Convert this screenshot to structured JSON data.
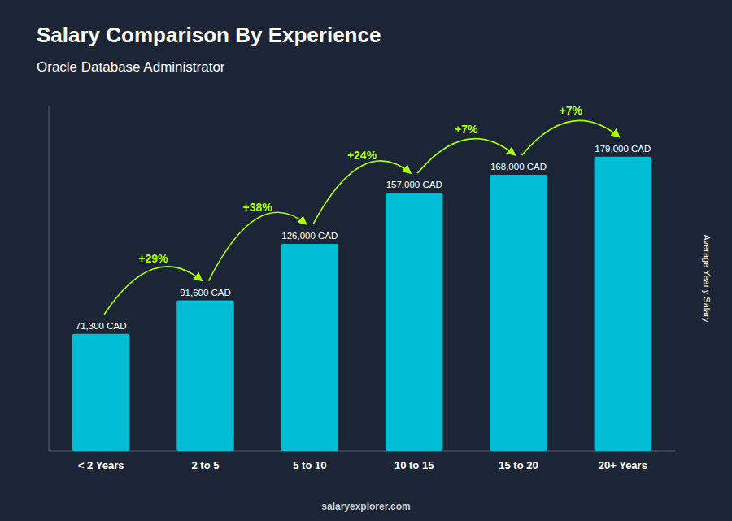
{
  "chart_data": {
    "type": "bar",
    "title": "Salary Comparison By Experience",
    "subtitle": "Oracle Database Administrator",
    "y_label": "Average Yearly Salary",
    "footer": "salaryexplorer.com",
    "categories": [
      "< 2 Years",
      "2 to 5",
      "5 to 10",
      "10 to 15",
      "15 to 20",
      "20+ Years"
    ],
    "values": [
      71300,
      91600,
      126000,
      157000,
      168000,
      179000
    ],
    "value_labels": [
      "71,300 CAD",
      "91,600 CAD",
      "126,000 CAD",
      "157,000 CAD",
      "168,000 CAD",
      "179,000 CAD"
    ],
    "data_labels": true,
    "color": "#00bcd4",
    "annotations": [
      {
        "text": "+29%",
        "color": "#aaff00"
      },
      {
        "text": "+38%",
        "color": "#aaff00"
      },
      {
        "text": "+24%",
        "color": "#aaff00"
      },
      {
        "text": "+7%",
        "color": "#aaff00"
      },
      {
        "text": "+7%",
        "color": "#aaff00"
      }
    ],
    "ylim": [
      0,
      210000
    ],
    "tick_labels": "x",
    "grid": false
  }
}
